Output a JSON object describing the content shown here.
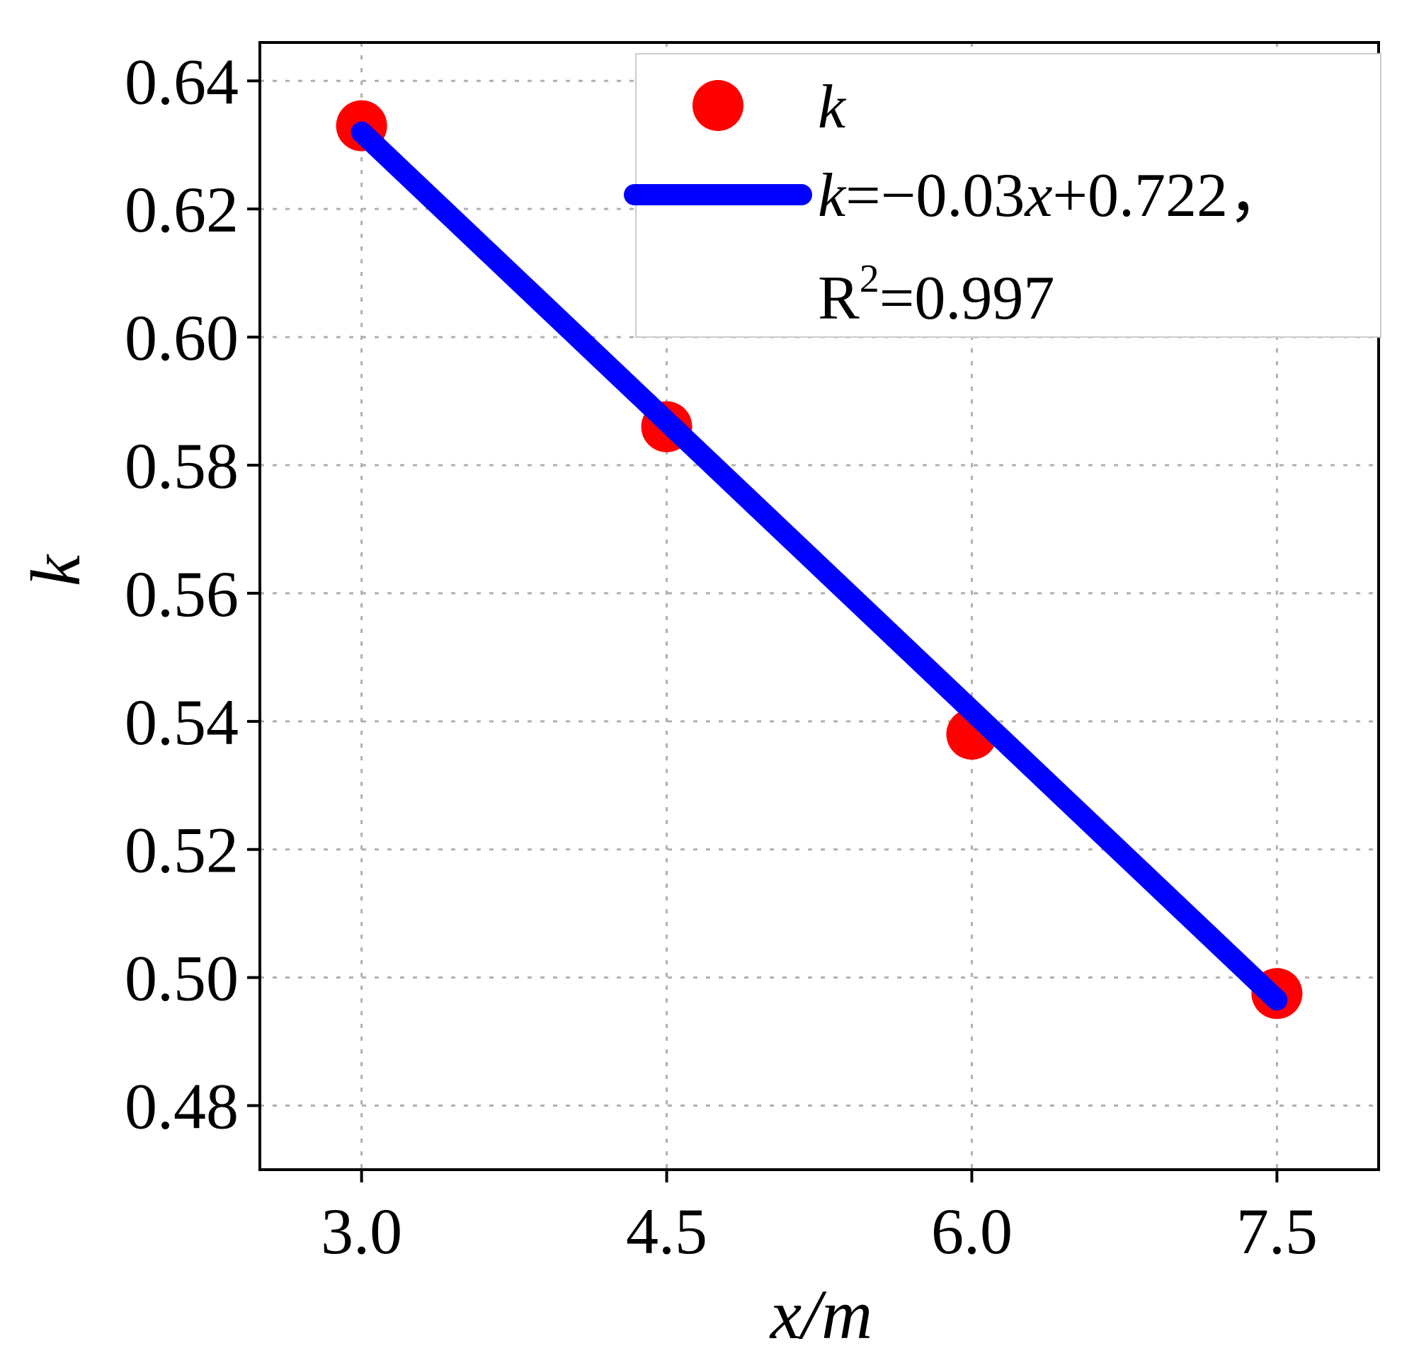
{
  "chart_data": {
    "type": "scatter",
    "title": "",
    "xlabel": "x/m",
    "ylabel": "k",
    "xlim": [
      2.5,
      8.0
    ],
    "ylim": [
      0.47,
      0.646
    ],
    "grid": true,
    "legend_position": "top-right",
    "x_ticks": [
      3.0,
      4.5,
      6.0,
      7.5
    ],
    "x_tick_labels": [
      "3.0",
      "4.5",
      "6.0",
      "7.5"
    ],
    "y_ticks": [
      0.48,
      0.5,
      0.52,
      0.54,
      0.56,
      0.58,
      0.6,
      0.62,
      0.64
    ],
    "y_tick_labels": [
      "0.48",
      "0.50",
      "0.52",
      "0.54",
      "0.56",
      "0.58",
      "0.60",
      "0.62",
      "0.64"
    ],
    "series": [
      {
        "name": "k",
        "kind": "scatter",
        "color": "#ff0000",
        "x": [
          3.0,
          4.5,
          6.0,
          7.5
        ],
        "y": [
          0.633,
          0.586,
          0.538,
          0.4975
        ]
      },
      {
        "name": "k=−0.03x+0.722, R²=0.997",
        "kind": "line",
        "color": "#0000ff",
        "x": [
          3.0,
          7.5
        ],
        "y": [
          0.632,
          0.4965
        ]
      }
    ],
    "legend": {
      "scatter_label": "k",
      "fit_label_k": "k",
      "fit_label_rest_1": "=−0.03",
      "fit_label_x": "x",
      "fit_label_rest_2": "+0.722，",
      "r2_prefix": "R",
      "r2_sup": "2",
      "r2_value": "=0.997"
    }
  }
}
